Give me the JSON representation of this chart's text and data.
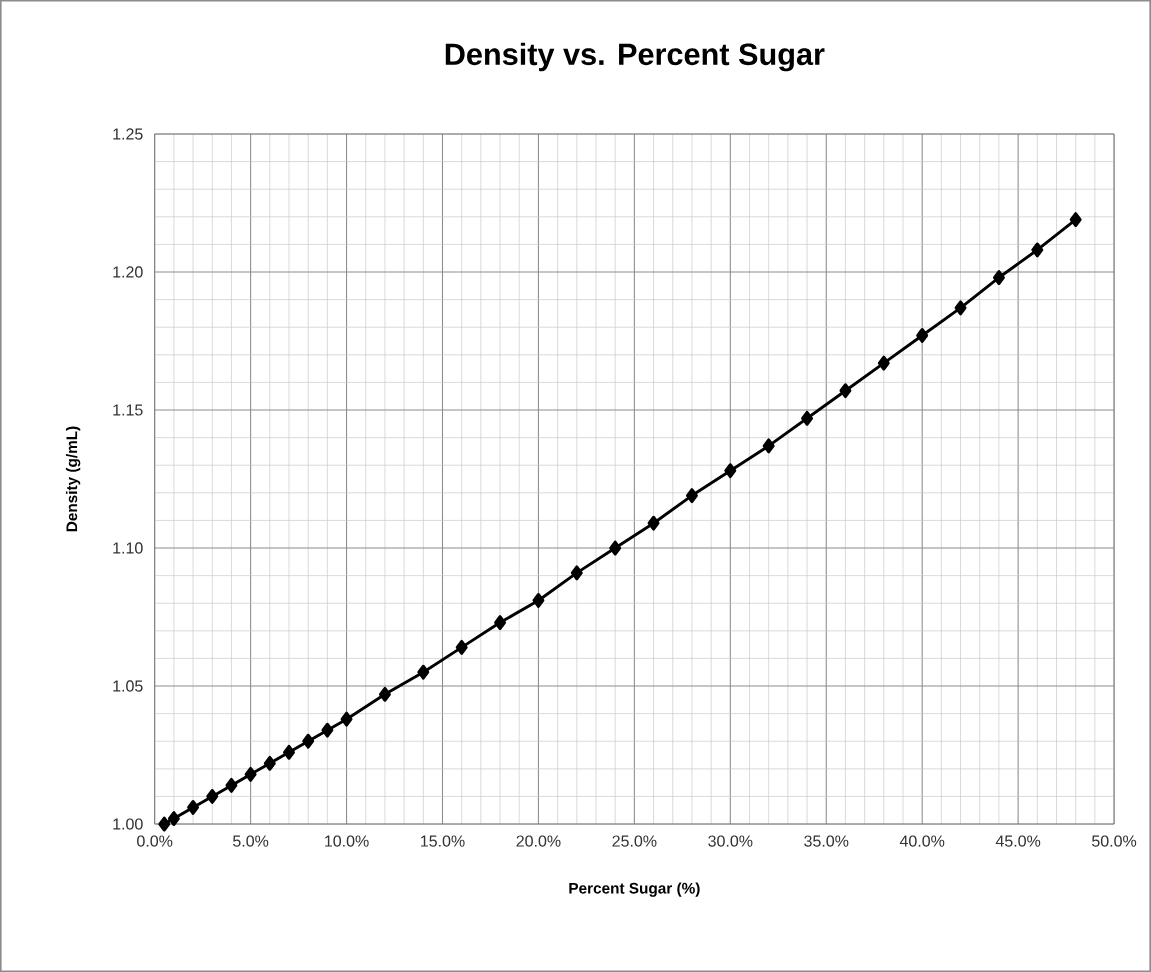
{
  "chart_data": {
    "type": "line",
    "title": "Density vs. Percent Sugar",
    "xlabel": "Percent Sugar (%)",
    "ylabel": "Density (g/mL)",
    "x": [
      0.5,
      1,
      2,
      3,
      4,
      5,
      6,
      7,
      8,
      9,
      10,
      12,
      14,
      16,
      18,
      20,
      22,
      24,
      26,
      28,
      30,
      32,
      34,
      36,
      38,
      40,
      42,
      44,
      46,
      48
    ],
    "series": [
      {
        "color": "#000000",
        "values": [
          1.0,
          1.002,
          1.006,
          1.01,
          1.014,
          1.018,
          1.022,
          1.026,
          1.03,
          1.034,
          1.038,
          1.047,
          1.055,
          1.064,
          1.073,
          1.081,
          1.091,
          1.1,
          1.109,
          1.119,
          1.128,
          1.137,
          1.147,
          1.157,
          1.167,
          1.177,
          1.187,
          1.198,
          1.208,
          1.219
        ]
      }
    ],
    "xlim": [
      0,
      50
    ],
    "ylim": [
      1.0,
      1.25
    ],
    "xticks": [
      {
        "value": 0,
        "label": "0.0%"
      },
      {
        "value": 5,
        "label": "5.0%"
      },
      {
        "value": 10,
        "label": "10.0%"
      },
      {
        "value": 15,
        "label": "15.0%"
      },
      {
        "value": 20,
        "label": "20.0%"
      },
      {
        "value": 25,
        "label": "25.0%"
      },
      {
        "value": 30,
        "label": "30.0%"
      },
      {
        "value": 35,
        "label": "35.0%"
      },
      {
        "value": 40,
        "label": "40.0%"
      },
      {
        "value": 45,
        "label": "45.0%"
      },
      {
        "value": 50,
        "label": "50.0%"
      }
    ],
    "yticks": [
      {
        "value": 1.0,
        "label": "1.00"
      },
      {
        "value": 1.05,
        "label": "1.05"
      },
      {
        "value": 1.1,
        "label": "1.10"
      },
      {
        "value": 1.15,
        "label": "1.15"
      },
      {
        "value": 1.2,
        "label": "1.20"
      },
      {
        "value": 1.25,
        "label": "1.25"
      }
    ],
    "grid": true,
    "marker": "diamond",
    "line_style": "solid"
  }
}
